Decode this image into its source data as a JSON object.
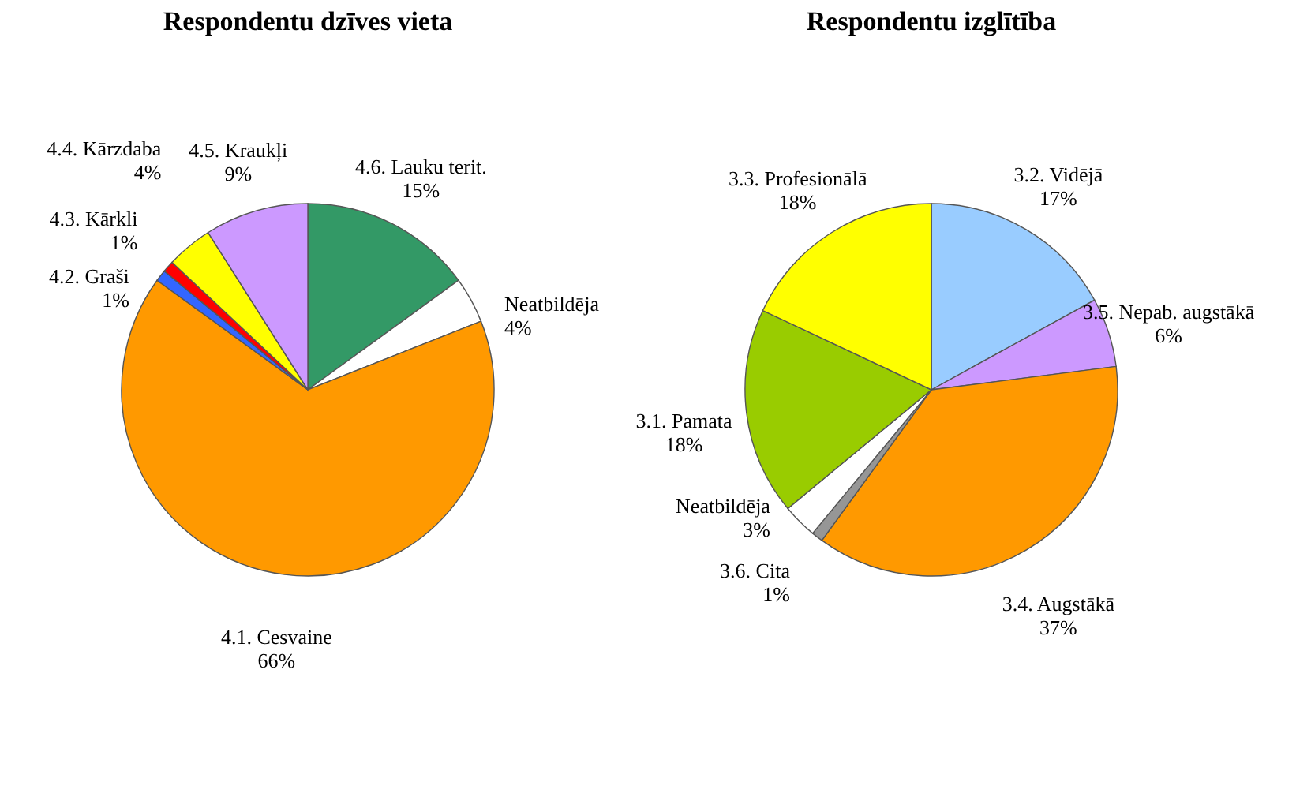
{
  "chart_data": [
    {
      "type": "pie",
      "title": "Respondentu dzīves vieta",
      "categories": [
        "4.6. Lauku terit.",
        "Neatbildēja",
        "4.1. Cesvaine",
        "4.2. Graši",
        "4.3. Kārkli",
        "4.4. Kārzdaba",
        "4.5. Kraukļi"
      ],
      "values": [
        15,
        4,
        66,
        1,
        1,
        4,
        9
      ],
      "value_labels": [
        "15%",
        "4%",
        "66%",
        "1%",
        "1%",
        "4%",
        "9%"
      ],
      "colors": [
        "#339966",
        "#ffffff",
        "#ff9900",
        "#3366ff",
        "#ff0000",
        "#ffff00",
        "#cc99ff"
      ],
      "legend": false
    },
    {
      "type": "pie",
      "title": "Respondentu izglītība",
      "categories": [
        "3.2. Vidējā",
        "3.5. Nepab. augstākā",
        "3.4. Augstākā",
        "3.6. Cita",
        "Neatbildēja",
        "3.1. Pamata",
        "3.3. Profesionālā"
      ],
      "values": [
        17,
        6,
        37,
        1,
        3,
        18,
        18
      ],
      "value_labels": [
        "17%",
        "6%",
        "37%",
        "1%",
        "3%",
        "18%",
        "18%"
      ],
      "colors": [
        "#99ccff",
        "#cc99ff",
        "#ff9900",
        "#969696",
        "#ffffff",
        "#99cc00",
        "#ffff00"
      ],
      "legend": false
    }
  ]
}
